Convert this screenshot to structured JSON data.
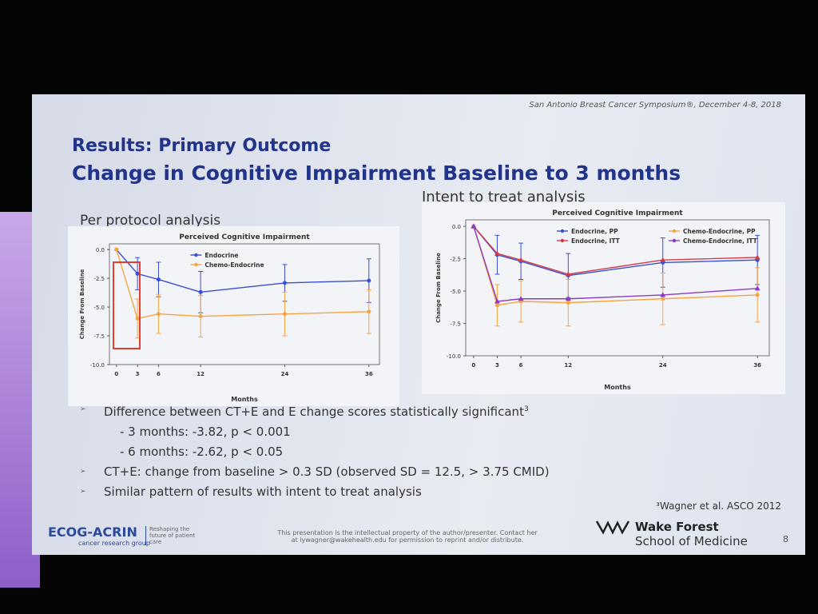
{
  "header": "San Antonio Breast Cancer Symposium®, December 4-8, 2018",
  "title": [
    "Results: Primary Outcome",
    "Change in Cognitive Impairment Baseline to 3 months"
  ],
  "left_heading": "Per protocol analysis",
  "right_heading": "Intent to treat analysis",
  "bullets": [
    {
      "text": "Difference between CT+E and E change scores statistically significant",
      "sup": "3",
      "level": 1
    },
    {
      "text": "- 3 months: -3.82, p < 0.001",
      "level": 2
    },
    {
      "text": "- 6 months: -2.62, p < 0.05",
      "level": 2
    },
    {
      "text": "CT+E: change from baseline > 0.3 SD (observed SD = 12.5, > 3.75 CMID)",
      "level": 1
    },
    {
      "text": "Similar pattern of results with intent to treat analysis",
      "level": 1
    }
  ],
  "footnote": "³Wagner et al. ASCO 2012",
  "footer": {
    "logo": "ECOG-ACRIN",
    "logo_sub": "cancer research group",
    "tagline": "Reshaping the future of patient care",
    "disclaimer": [
      "This presentation is the intellectual property of the author/presenter. Contact her",
      "at lywagner@wakehealth.edu for permission to reprint and/or distribute."
    ],
    "school": [
      "Wake Forest",
      "School of Medicine"
    ],
    "page": "8"
  },
  "chart_data": [
    {
      "type": "line",
      "title": "Perceived Cognitive Impairment",
      "x_label": "Months",
      "y_label": "Change From Baseline",
      "x": [
        0,
        3,
        6,
        12,
        24,
        36
      ],
      "xlim": [
        -1,
        37.5
      ],
      "xticks": [
        0,
        3,
        6,
        12,
        24,
        36
      ],
      "ylim": [
        -10,
        0.5
      ],
      "yticks": [
        {
          "value": 0,
          "label": "0.0"
        },
        -2.5,
        {
          "value": -5,
          "label": "-5.0"
        },
        -7.5,
        {
          "value": -10,
          "label": "-10.0"
        }
      ],
      "series": [
        {
          "name": "Endocrine",
          "color": "#3a4fd0",
          "marker": "circle",
          "values": [
            0,
            -2.1,
            -2.6,
            -3.7,
            -2.9,
            -2.7
          ],
          "errors": [
            null,
            1.4,
            1.5,
            1.8,
            1.6,
            1.9
          ]
        },
        {
          "name": "Chemo-Endocrine",
          "color": "#f5a442",
          "marker": "circle",
          "values": [
            0,
            -6.0,
            -5.6,
            -5.8,
            -5.6,
            -5.4
          ],
          "errors": [
            null,
            1.7,
            1.7,
            1.8,
            1.9,
            1.9
          ]
        }
      ]
    },
    {
      "type": "line",
      "title": "Perceived Cognitive Impairment",
      "x_label": "Months",
      "y_label": "Change From Baseline",
      "x": [
        0,
        3,
        6,
        12,
        24,
        36
      ],
      "xlim": [
        -1,
        37.5
      ],
      "xticks": [
        0,
        3,
        6,
        12,
        24,
        36
      ],
      "ylim": [
        -10,
        0.5
      ],
      "yticks": [
        {
          "value": 0,
          "label": "0.0"
        },
        -2.5,
        {
          "value": -5,
          "label": "-5.0"
        },
        -7.5,
        {
          "value": -10,
          "label": "-10.0"
        }
      ],
      "series": [
        {
          "name": "Endocrine, PP",
          "color": "#3a4fd0",
          "marker": "circle",
          "values": [
            0,
            -2.2,
            -2.7,
            -3.8,
            -2.8,
            -2.6
          ],
          "errors": [
            null,
            1.5,
            1.4,
            1.7,
            1.9,
            1.9
          ]
        },
        {
          "name": "Chemo-Endocrine, PP",
          "color": "#f5a442",
          "marker": "circle",
          "values": [
            0,
            -6.1,
            -5.8,
            -5.9,
            -5.6,
            -5.3
          ],
          "errors": [
            null,
            1.6,
            1.6,
            1.8,
            2.0,
            2.1
          ]
        },
        {
          "name": "Endocrine, ITT",
          "color": "#d23c4a",
          "marker": "triangle",
          "values": [
            0,
            -2.1,
            -2.6,
            -3.7,
            -2.6,
            -2.4
          ]
        },
        {
          "name": "Chemo-Endocrine, ITT",
          "color": "#8a3cc8",
          "marker": "triangle",
          "values": [
            0,
            -5.8,
            -5.6,
            -5.6,
            -5.3,
            -4.8
          ]
        }
      ]
    }
  ]
}
